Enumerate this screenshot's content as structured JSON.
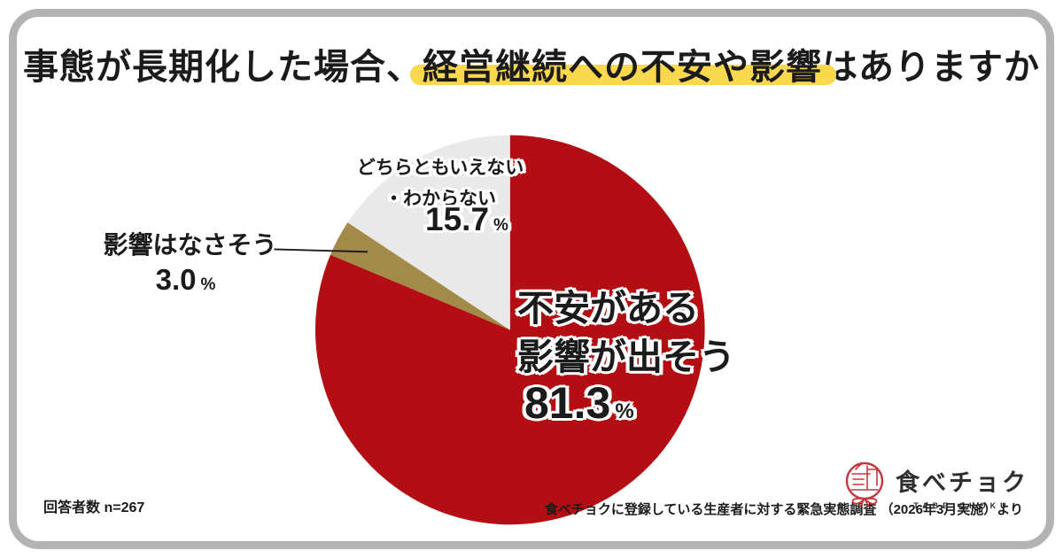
{
  "title": {
    "pre": "事態が長期化した場合、",
    "highlight": "経営継続への不安や影響",
    "post": "はありますか"
  },
  "chart_data": {
    "type": "pie",
    "title": "事態が長期化した場合、経営継続への不安や影響はありますか",
    "start_angle_deg": 0,
    "direction": "clockwise",
    "total": 100,
    "slices": [
      {
        "label": "不安がある・影響が出そう",
        "value": 81.3,
        "color": "#b30e13"
      },
      {
        "label": "影響はなさそう",
        "value": 3.0,
        "color": "#a28a48"
      },
      {
        "label": "どちらともいえない・わからない",
        "value": 15.7,
        "color": "#e9e9e9"
      }
    ],
    "legend": "none",
    "annotations": [
      {
        "text": "不安がある 影響が出そう 81.3%",
        "placement": "on-slice"
      },
      {
        "text": "どちらともいえない・わからない 15.7%",
        "placement": "on-slice"
      },
      {
        "text": "影響はなさそう 3.0%",
        "placement": "outside-with-leader-line"
      }
    ]
  },
  "labels": {
    "main": {
      "line1": "不安がある",
      "line2": "影響が出そう",
      "value": "81.3",
      "unit": "%"
    },
    "neutral": {
      "line1": "どちらともいえない",
      "line2": "・わからない",
      "value": "15.7",
      "unit": "%"
    },
    "none": {
      "line1": "影響はなさそう",
      "value": "3.0",
      "unit": "%"
    }
  },
  "footer": {
    "respondents": "回答者数 n=267",
    "source": "食べチョクに登録している生産者に対する緊急実態調査 （2026年3月実施）より"
  },
  "logo": {
    "wordmark": "食べチョク",
    "subtext": "TABE CHOKU"
  },
  "colors": {
    "slice_main": "#b30e13",
    "slice_none": "#a28a48",
    "slice_neutral": "#e9e9e9",
    "title_marker": "#fbd84d",
    "ink": "#1b1b1b",
    "frame": "#b3b3b3",
    "logo_red": "#c4383e"
  }
}
